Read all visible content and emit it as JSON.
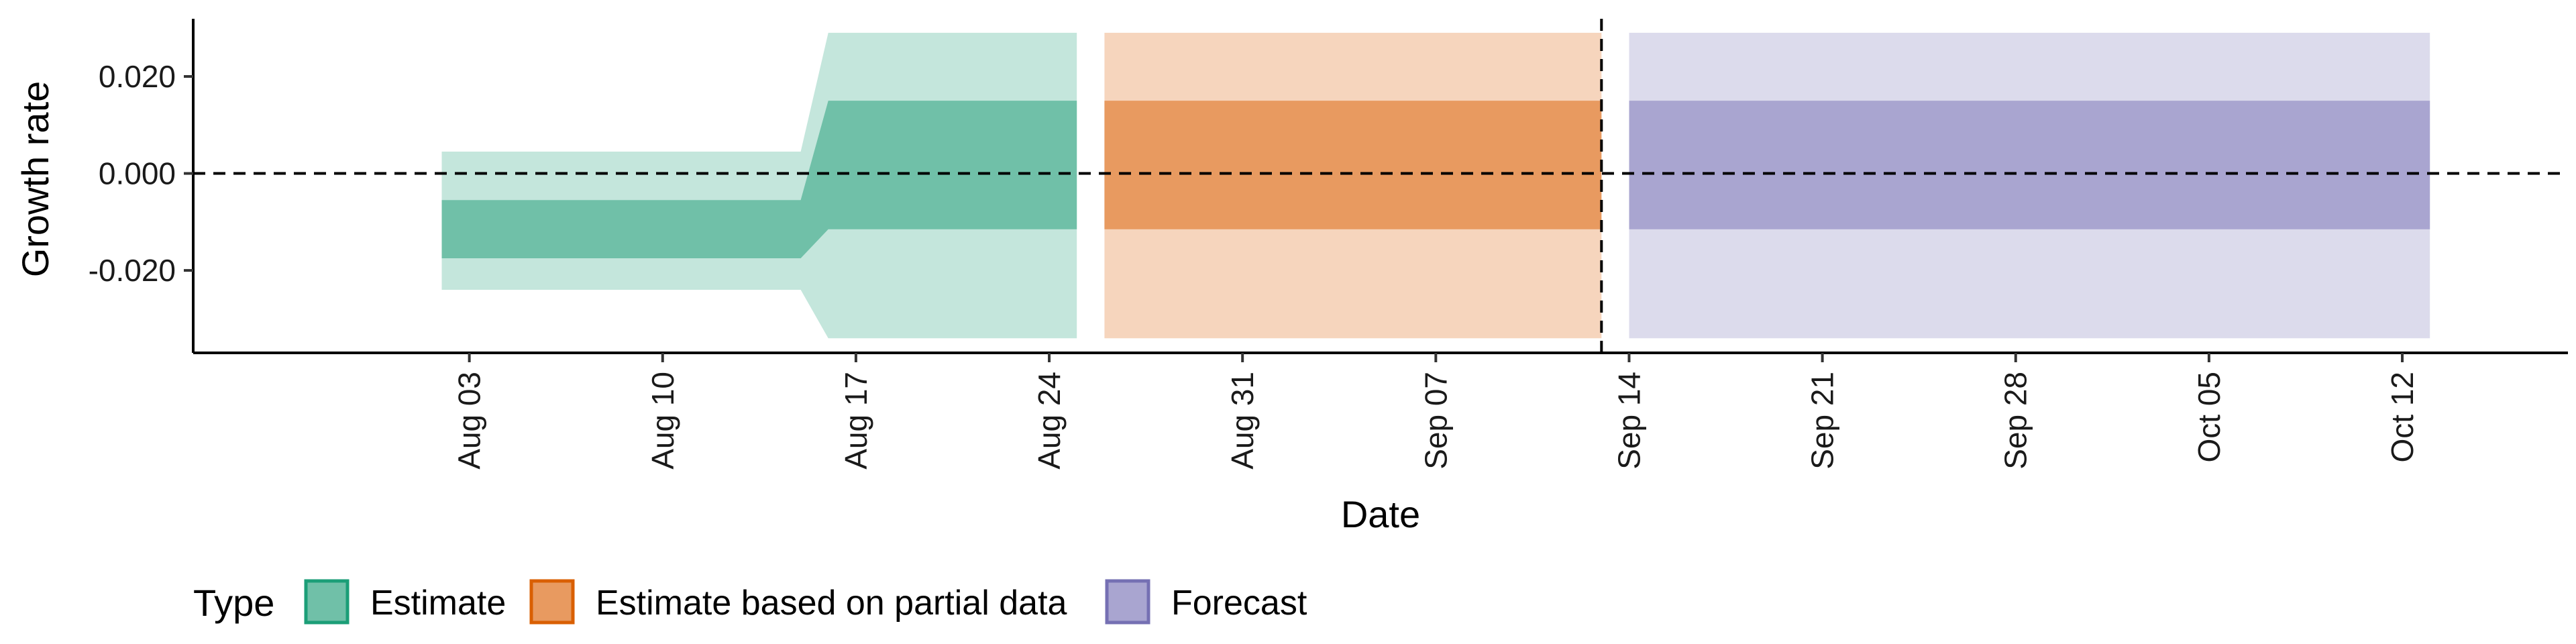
{
  "chart_data": {
    "type": "area",
    "xlabel": "Date",
    "ylabel": "Growth rate",
    "x_range": [
      "2023-07-24",
      "2023-10-18"
    ],
    "ylim": [
      -0.037,
      0.033
    ],
    "y_ticks": [
      {
        "value": -0.02,
        "label": "-0.020"
      },
      {
        "value": 0.0,
        "label": "0.000"
      },
      {
        "value": 0.02,
        "label": "0.020"
      }
    ],
    "x_ticks": [
      {
        "date": "2023-08-03",
        "label": "Aug 03"
      },
      {
        "date": "2023-08-10",
        "label": "Aug 10"
      },
      {
        "date": "2023-08-17",
        "label": "Aug 17"
      },
      {
        "date": "2023-08-24",
        "label": "Aug 24"
      },
      {
        "date": "2023-08-31",
        "label": "Aug 31"
      },
      {
        "date": "2023-09-07",
        "label": "Sep 07"
      },
      {
        "date": "2023-09-14",
        "label": "Sep 14"
      },
      {
        "date": "2023-09-21",
        "label": "Sep 21"
      },
      {
        "date": "2023-09-28",
        "label": "Sep 28"
      },
      {
        "date": "2023-10-05",
        "label": "Oct 05"
      },
      {
        "date": "2023-10-12",
        "label": "Oct 12"
      }
    ],
    "reference_lines": {
      "horizontal_y": 0.0,
      "vertical_date": "2023-09-13"
    },
    "grid": false,
    "legend": {
      "title": "Type",
      "position": "bottom-left",
      "entries": [
        {
          "label": "Estimate",
          "fill": "#70c0a8",
          "border": "#1b9e77"
        },
        {
          "label": "Estimate based on partial data",
          "fill": "#e89a60",
          "border": "#d95f02"
        },
        {
          "label": "Forecast",
          "fill": "#a9a5d0",
          "border": "#7570b3"
        }
      ]
    },
    "series": [
      {
        "name": "Estimate",
        "colors": {
          "inner": "#70c0a8",
          "outer": "#c4e6dc"
        },
        "points": [
          {
            "date": "2023-08-02",
            "outer_lo": -0.024,
            "inner_lo": -0.0175,
            "inner_hi": -0.0055,
            "outer_hi": 0.0045
          },
          {
            "date": "2023-08-15",
            "outer_lo": -0.024,
            "inner_lo": -0.0175,
            "inner_hi": -0.0055,
            "outer_hi": 0.0045
          },
          {
            "date": "2023-08-16",
            "outer_lo": -0.034,
            "inner_lo": -0.0115,
            "inner_hi": 0.015,
            "outer_hi": 0.029
          },
          {
            "date": "2023-08-25",
            "outer_lo": -0.034,
            "inner_lo": -0.0115,
            "inner_hi": 0.015,
            "outer_hi": 0.029
          }
        ]
      },
      {
        "name": "Estimate based on partial data",
        "colors": {
          "inner": "#e89a60",
          "outer": "#f6d5bd"
        },
        "points": [
          {
            "date": "2023-08-26",
            "outer_lo": -0.034,
            "inner_lo": -0.0115,
            "inner_hi": 0.015,
            "outer_hi": 0.029
          },
          {
            "date": "2023-09-13",
            "outer_lo": -0.034,
            "inner_lo": -0.0115,
            "inner_hi": 0.015,
            "outer_hi": 0.029
          }
        ]
      },
      {
        "name": "Forecast",
        "colors": {
          "inner": "#a9a5d0",
          "outer": "#dcdbec"
        },
        "points": [
          {
            "date": "2023-09-14",
            "outer_lo": -0.034,
            "inner_lo": -0.0115,
            "inner_hi": 0.015,
            "outer_hi": 0.029
          },
          {
            "date": "2023-10-13",
            "outer_lo": -0.034,
            "inner_lo": -0.0115,
            "inner_hi": 0.015,
            "outer_hi": 0.029
          }
        ]
      }
    ]
  }
}
